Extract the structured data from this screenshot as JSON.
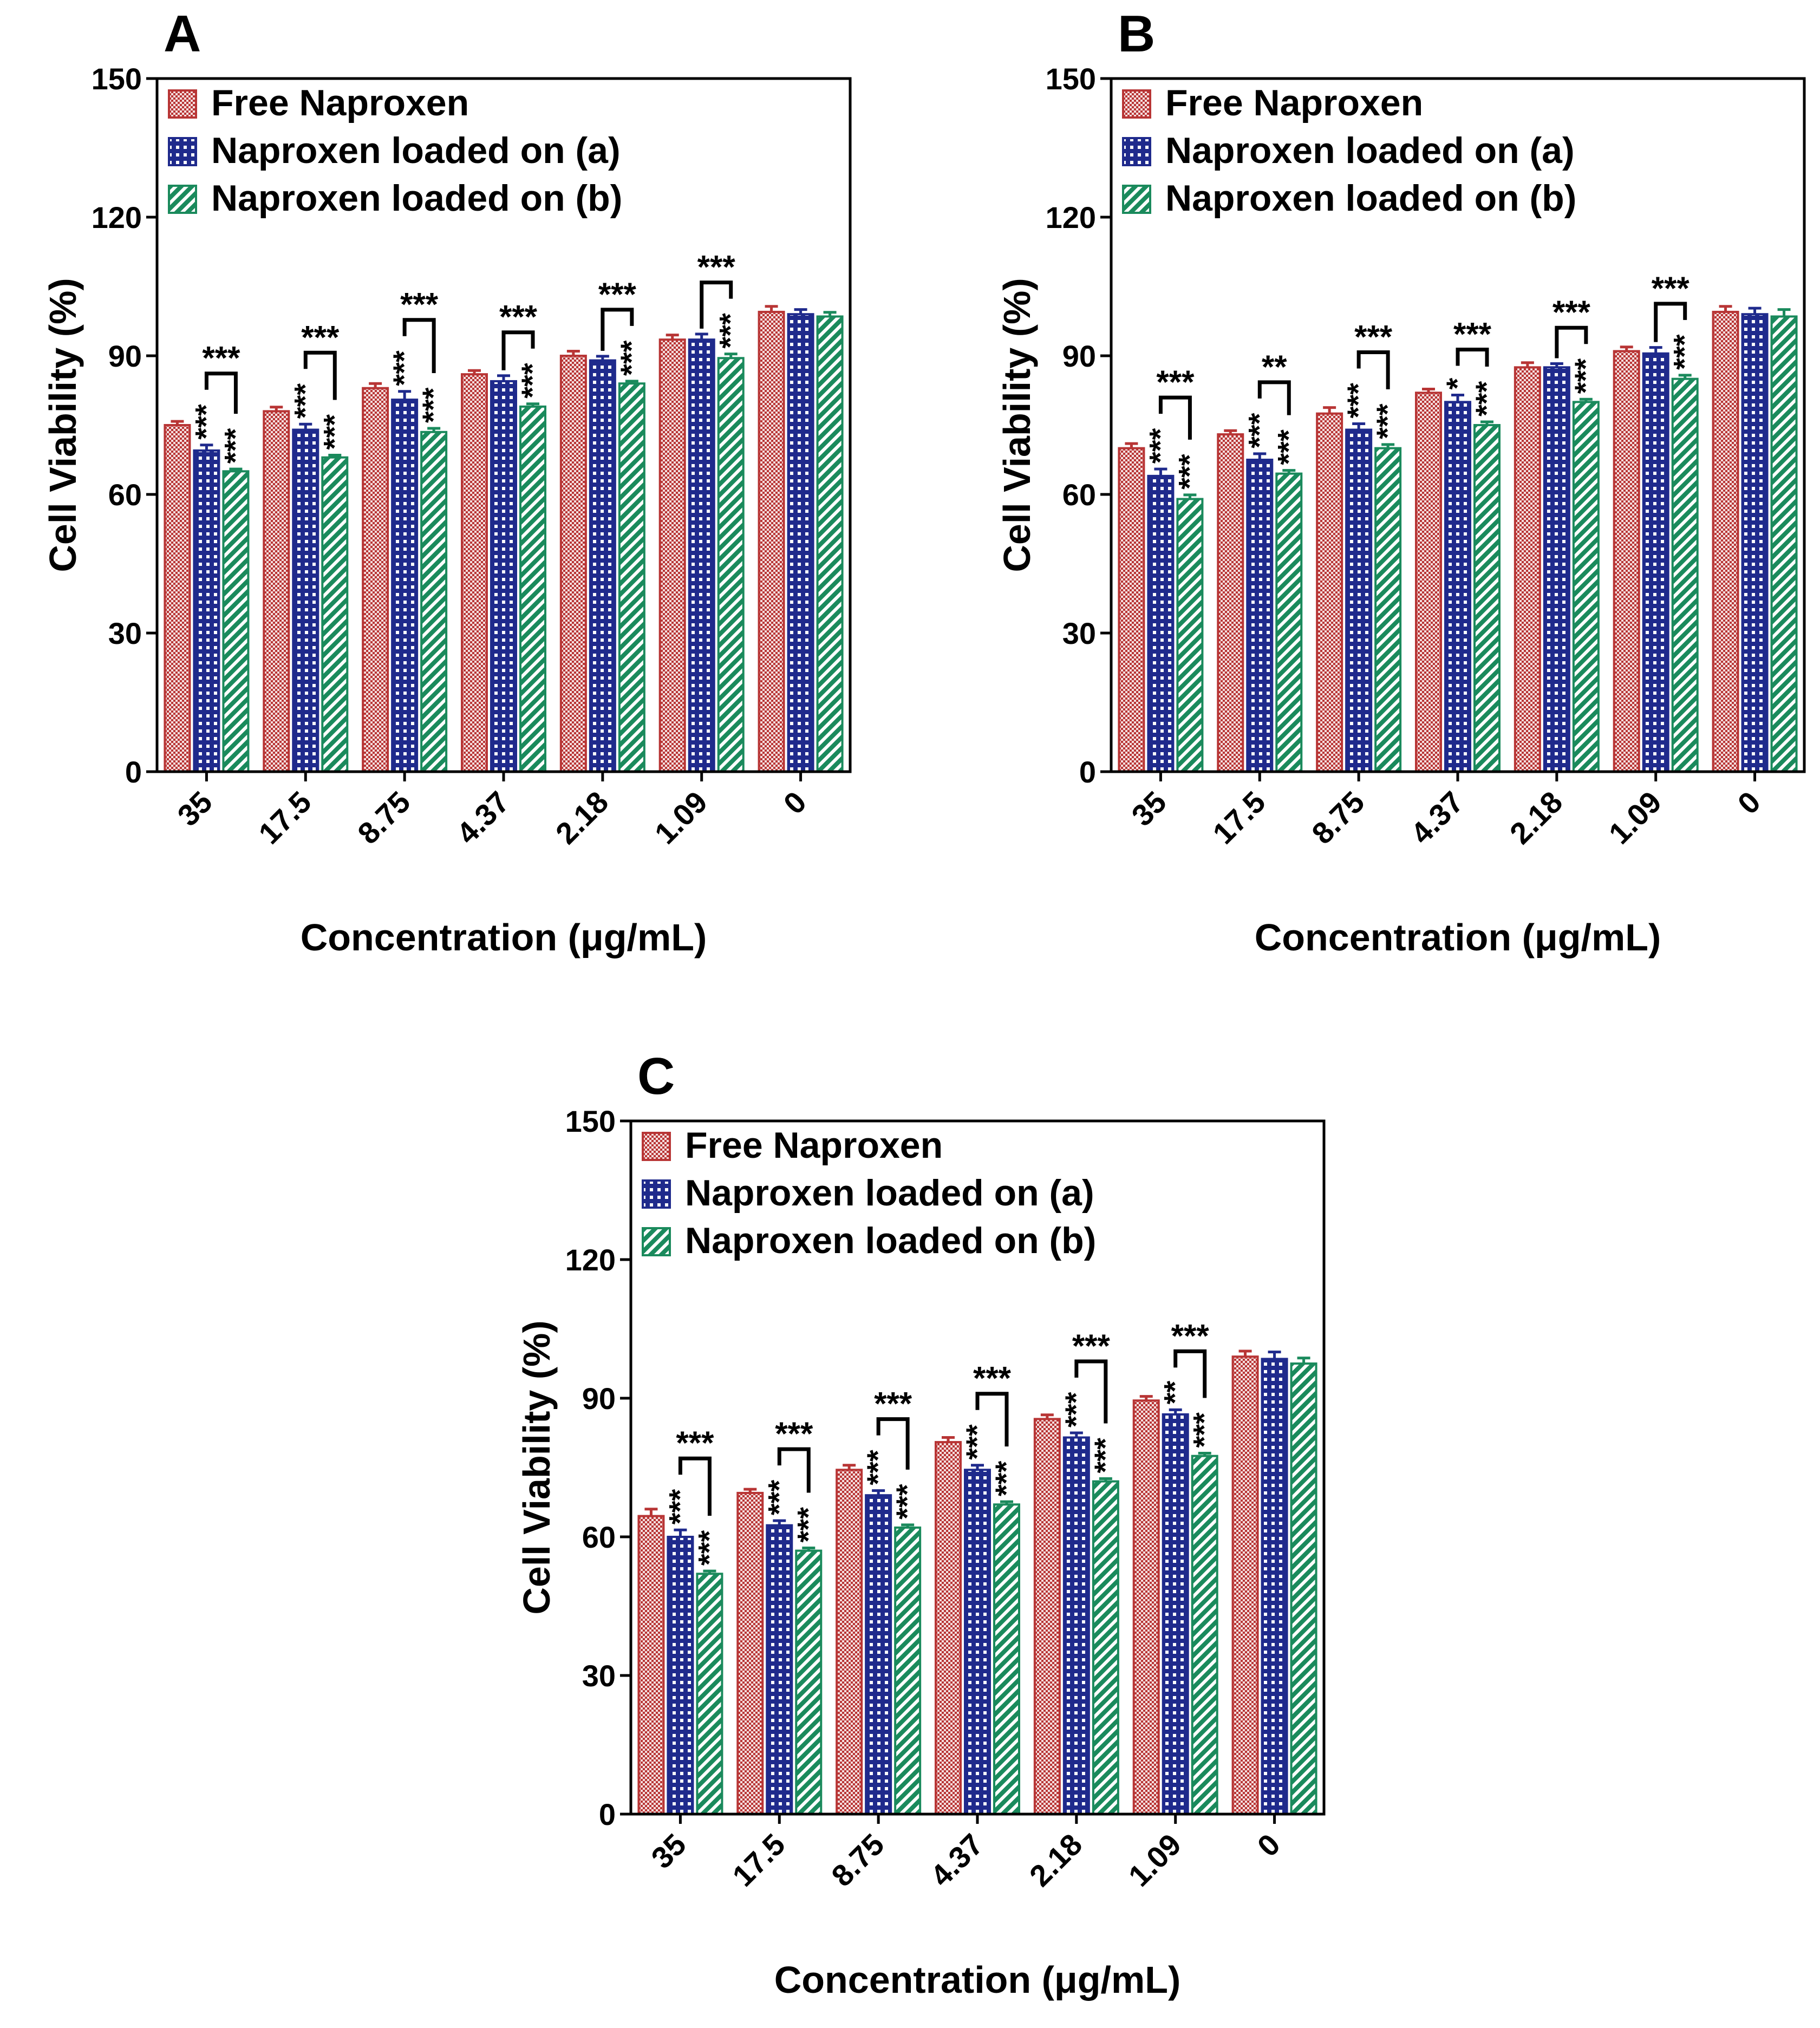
{
  "colors": {
    "free": "#b83535",
    "loaded_a": "#1f2a8c",
    "loaded_b": "#1a8a5c",
    "axis": "#000000"
  },
  "legend": [
    "Free Naproxen",
    "Naproxen loaded on (a)",
    "Naproxen loaded on (b)"
  ],
  "chart_data": [
    {
      "type": "bar",
      "panel": "A",
      "xlabel": "Concentration (μg/mL)",
      "ylabel": "Cell Viability (%)",
      "ylim": [
        0,
        150
      ],
      "yticks": [
        0,
        30,
        60,
        90,
        120,
        150
      ],
      "categories": [
        "35",
        "17.5",
        "8.75",
        "4.37",
        "2.18",
        "1.09",
        "0"
      ],
      "series": [
        {
          "name": "Free Naproxen",
          "values": [
            75,
            78,
            83,
            86,
            90,
            93.5,
            99.5
          ],
          "errors": [
            0.8,
            0.9,
            1.0,
            0.8,
            1.0,
            1.0,
            1.2
          ],
          "sig": [
            "",
            "",
            "",
            "",
            "",
            "",
            ""
          ]
        },
        {
          "name": "Naproxen loaded on (a)",
          "values": [
            69.5,
            74,
            80.5,
            84.5,
            89,
            93.5,
            99
          ],
          "errors": [
            1.2,
            1.2,
            1.8,
            1.2,
            0.9,
            1.2,
            1.0
          ],
          "sig": [
            "***",
            "***",
            "***",
            "",
            "",
            "",
            ""
          ]
        },
        {
          "name": "Naproxen loaded on (b)",
          "values": [
            65,
            68,
            73.5,
            79,
            84,
            89.5,
            98.5
          ],
          "errors": [
            0.5,
            0.5,
            0.8,
            0.6,
            0.5,
            0.9,
            0.9
          ],
          "sig": [
            "***",
            "***",
            "***",
            "***",
            "***",
            "***",
            ""
          ]
        }
      ],
      "brackets": [
        "***",
        "***",
        "***",
        "***",
        "***",
        "***",
        ""
      ]
    },
    {
      "type": "bar",
      "panel": "B",
      "xlabel": "Concentration (μg/mL)",
      "ylabel": "Cell Viability (%)",
      "ylim": [
        0,
        150
      ],
      "yticks": [
        0,
        30,
        60,
        90,
        120,
        150
      ],
      "categories": [
        "35",
        "17.5",
        "8.75",
        "4.37",
        "2.18",
        "1.09",
        "0"
      ],
      "series": [
        {
          "name": "Free Naproxen",
          "values": [
            70,
            73,
            77.5,
            82,
            87.5,
            91,
            99.5
          ],
          "errors": [
            1.0,
            0.8,
            1.3,
            0.8,
            1.0,
            0.9,
            1.2
          ],
          "sig": [
            "",
            "",
            "",
            "",
            "",
            "",
            ""
          ]
        },
        {
          "name": "Naproxen loaded on (a)",
          "values": [
            64,
            67.5,
            74,
            80,
            87.5,
            90.5,
            99
          ],
          "errors": [
            1.5,
            1.3,
            1.3,
            1.5,
            0.8,
            1.3,
            1.3
          ],
          "sig": [
            "***",
            "***",
            "***",
            "*",
            "",
            "",
            ""
          ]
        },
        {
          "name": "Naproxen loaded on (b)",
          "values": [
            59,
            64.5,
            70,
            75,
            80,
            85,
            98.5
          ],
          "errors": [
            0.9,
            0.7,
            0.8,
            0.7,
            0.6,
            0.8,
            1.5
          ],
          "sig": [
            "***",
            "***",
            "***",
            "***",
            "***",
            "***",
            ""
          ]
        }
      ],
      "brackets": [
        "***",
        "**",
        "***",
        "***",
        "***",
        "***",
        ""
      ]
    },
    {
      "type": "bar",
      "panel": "C",
      "xlabel": "Concentration (μg/mL)",
      "ylabel": "Cell Viability (%)",
      "ylim": [
        0,
        150
      ],
      "yticks": [
        0,
        30,
        60,
        90,
        120,
        150
      ],
      "categories": [
        "35",
        "17.5",
        "8.75",
        "4.37",
        "2.18",
        "1.09",
        "0"
      ],
      "series": [
        {
          "name": "Free Naproxen",
          "values": [
            64.5,
            69.5,
            74.5,
            80.5,
            85.5,
            89.5,
            99
          ],
          "errors": [
            1.5,
            0.8,
            1.0,
            1.0,
            0.9,
            0.9,
            1.2
          ],
          "sig": [
            "",
            "",
            "",
            "",
            "",
            "",
            ""
          ]
        },
        {
          "name": "Naproxen loaded on (a)",
          "values": [
            60,
            62.5,
            69,
            74.5,
            81.5,
            86.5,
            98.5
          ],
          "errors": [
            1.5,
            1.0,
            1.0,
            1.0,
            1.0,
            1.0,
            1.5
          ],
          "sig": [
            "***",
            "***",
            "***",
            "***",
            "***",
            "**",
            ""
          ]
        },
        {
          "name": "Naproxen loaded on (b)",
          "values": [
            52,
            57,
            62,
            67,
            72,
            77.5,
            97.5
          ],
          "errors": [
            0.6,
            0.6,
            0.6,
            0.6,
            0.6,
            0.6,
            1.2
          ],
          "sig": [
            "***",
            "***",
            "***",
            "***",
            "***",
            "***",
            ""
          ]
        }
      ],
      "brackets": [
        "***",
        "***",
        "***",
        "***",
        "***",
        "***",
        ""
      ]
    }
  ]
}
